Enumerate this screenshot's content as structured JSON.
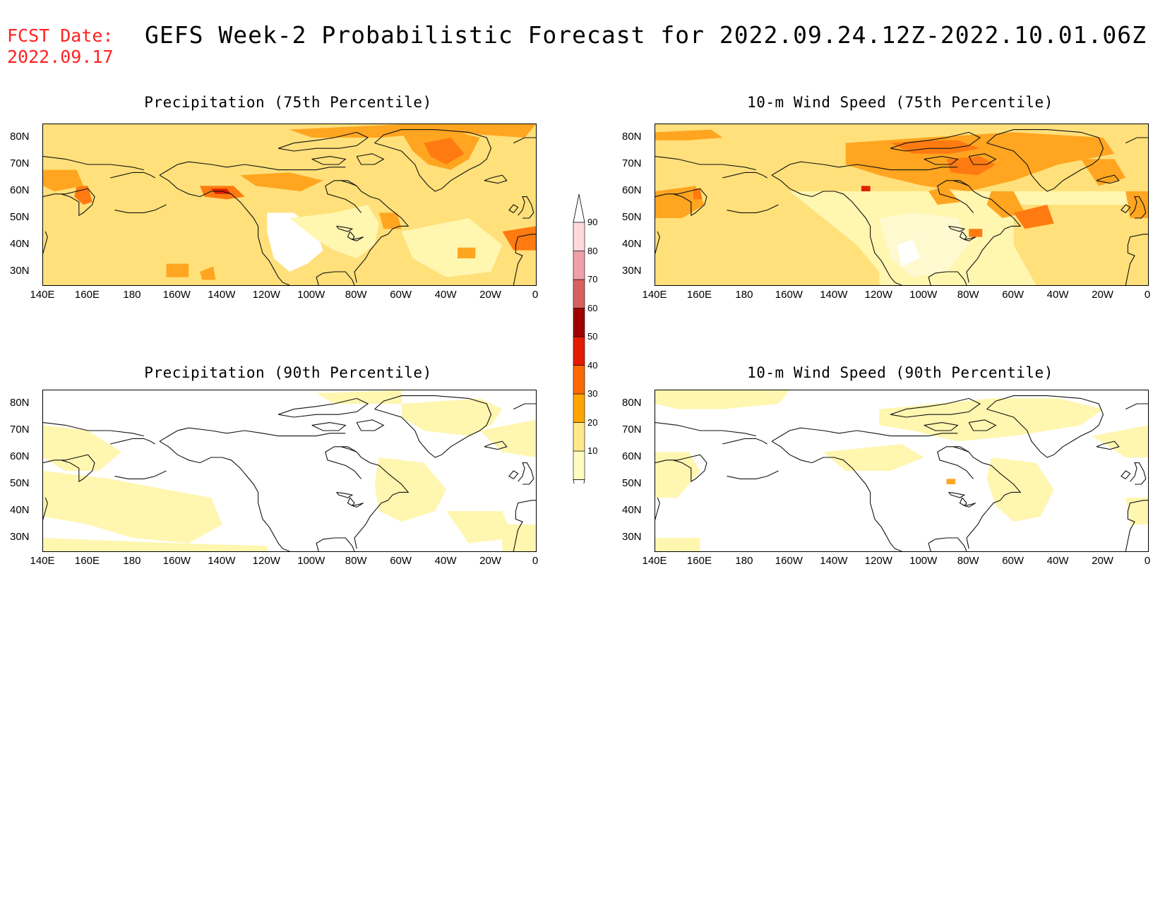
{
  "fcst_label": "FCST Date:",
  "fcst_date": "2022.09.17",
  "title": "GEFS Week-2 Probabilistic Forecast for 2022.09.24.12Z-2022.10.01.06Z",
  "panels": [
    {
      "title": "Precipitation (75th Percentile)"
    },
    {
      "title": "10-m Wind Speed (75th Percentile)"
    },
    {
      "title": "Precipitation (90th Percentile)"
    },
    {
      "title": "10-m Wind Speed (90th Percentile)"
    }
  ],
  "lat_ticks": [
    "80N",
    "70N",
    "60N",
    "50N",
    "40N",
    "30N"
  ],
  "lon_ticks": [
    "140E",
    "160E",
    "180",
    "160W",
    "140W",
    "120W",
    "100W",
    "80W",
    "60W",
    "40W",
    "20W",
    "0"
  ],
  "colorbar": {
    "levels": [
      "10",
      "20",
      "30",
      "40",
      "50",
      "60",
      "70",
      "80",
      "90"
    ],
    "colors": [
      "#fffcc0",
      "#ffe88a",
      "#ffa500",
      "#ff6a00",
      "#e41a00",
      "#a00000",
      "#d86060",
      "#f0a0a8",
      "#ffd8dc"
    ]
  },
  "colors": {
    "fcst": "#ff2222",
    "light": "#fff6b0",
    "mid": "#ffe07a",
    "orange": "#ffa520",
    "dark_orange": "#ff7a10",
    "red": "#e02000"
  }
}
